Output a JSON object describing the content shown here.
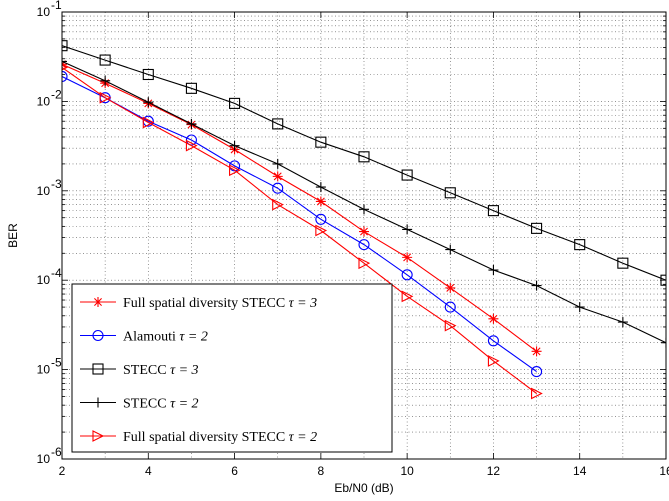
{
  "chart_data": {
    "type": "line",
    "xlabel": "Eb/N0 (dB)",
    "ylabel": "BER",
    "xlim": [
      2,
      16
    ],
    "ylim": [
      1e-06,
      0.1
    ],
    "yscale": "log",
    "grid": true,
    "grid_style": "dotted",
    "legend_position": "bottom-left",
    "x_ticks": [
      2,
      4,
      6,
      8,
      10,
      12,
      14,
      16
    ],
    "x_tick_labels": [
      "2",
      "4",
      "6",
      "8",
      "10",
      "12",
      "14",
      "16"
    ],
    "y_ticks": [
      1e-06,
      1e-05,
      0.0001,
      0.001,
      0.01,
      0.1
    ],
    "y_tick_labels": [
      {
        "base": "10",
        "exp": "-6"
      },
      {
        "base": "10",
        "exp": "-5"
      },
      {
        "base": "10",
        "exp": "-4"
      },
      {
        "base": "10",
        "exp": "-3"
      },
      {
        "base": "10",
        "exp": "-2"
      },
      {
        "base": "10",
        "exp": "-1"
      }
    ],
    "series": [
      {
        "name": "Full spatial diversity STECC τ = 3",
        "label_text": "Full spatial diversity STECC ",
        "label_math": "τ = 3",
        "color": "#ff0000",
        "marker": "asterisk",
        "x": [
          2,
          3,
          4,
          5,
          6,
          7,
          8,
          9,
          10,
          11,
          12,
          13
        ],
        "y": [
          0.026,
          0.016,
          0.0095,
          0.0055,
          0.0029,
          0.00145,
          0.00076,
          0.00035,
          0.00018,
          8.2e-05,
          3.7e-05,
          1.6e-05
        ]
      },
      {
        "name": "Alamouti τ = 2",
        "label_text": "Alamouti ",
        "label_math": "τ = 2",
        "color": "#0000ff",
        "marker": "circle",
        "x": [
          2,
          3,
          4,
          5,
          6,
          7,
          8,
          9,
          10,
          11,
          12,
          13
        ],
        "y": [
          0.019,
          0.011,
          0.006,
          0.0037,
          0.0019,
          0.00107,
          0.00048,
          0.00025,
          0.000115,
          5e-05,
          2.1e-05,
          9.5e-06
        ]
      },
      {
        "name": "STECC τ = 3",
        "label_text": "STECC ",
        "label_math": "τ = 3",
        "color": "#000000",
        "marker": "square",
        "x": [
          2,
          3,
          4,
          5,
          6,
          7,
          8,
          9,
          10,
          11,
          12,
          13,
          14,
          15,
          16
        ],
        "y": [
          0.042,
          0.029,
          0.02,
          0.014,
          0.0095,
          0.0056,
          0.0035,
          0.0024,
          0.0015,
          0.00095,
          0.0006,
          0.00038,
          0.00025,
          0.000155,
          0.0001
        ]
      },
      {
        "name": "STECC τ = 2",
        "label_text": "STECC ",
        "label_math": "τ = 2",
        "color": "#000000",
        "marker": "plus",
        "x": [
          2,
          3,
          4,
          5,
          6,
          7,
          8,
          9,
          10,
          11,
          12,
          13,
          14,
          15,
          16
        ],
        "y": [
          0.028,
          0.017,
          0.0098,
          0.0056,
          0.0032,
          0.002,
          0.0011,
          0.00062,
          0.00037,
          0.00022,
          0.00013,
          8.7e-05,
          5e-05,
          3.4e-05,
          2e-05
        ]
      },
      {
        "name": "Full spatial diversity STECC τ = 2",
        "label_text": "Full spatial diversity STECC ",
        "label_math": "τ = 2",
        "color": "#ff0000",
        "marker": "triangle-right",
        "x": [
          2,
          3,
          4,
          5,
          6,
          7,
          8,
          9,
          10,
          11,
          12,
          13
        ],
        "y": [
          0.024,
          0.011,
          0.0058,
          0.0032,
          0.0017,
          0.0007,
          0.00036,
          0.000155,
          6.6e-05,
          3.1e-05,
          1.25e-05,
          5.4e-06
        ]
      }
    ]
  }
}
